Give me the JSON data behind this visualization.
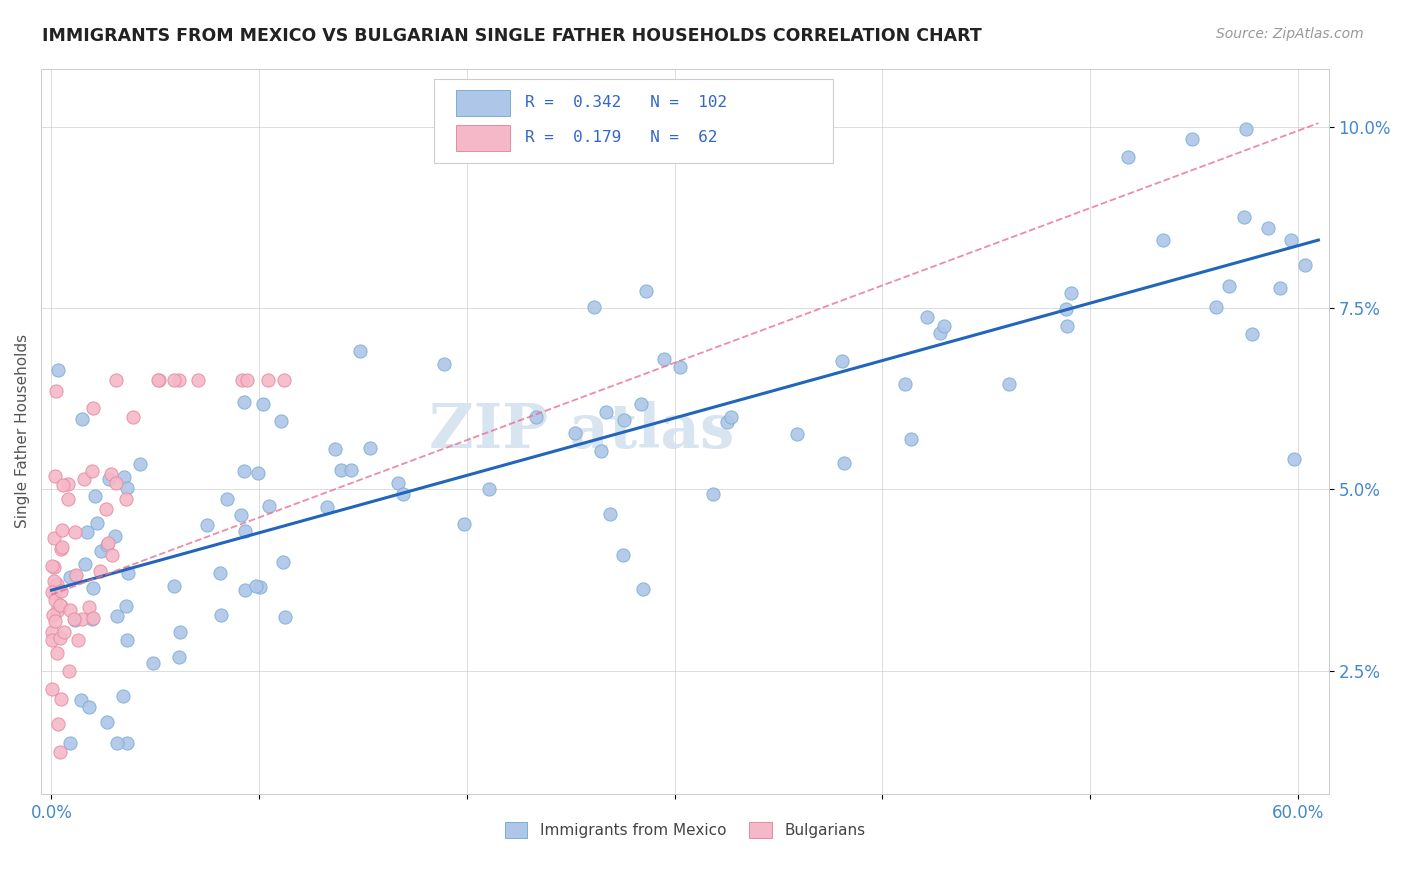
{
  "title": "IMMIGRANTS FROM MEXICO VS BULGARIAN SINGLE FATHER HOUSEHOLDS CORRELATION CHART",
  "source": "Source: ZipAtlas.com",
  "ylabel": "Single Father Households",
  "xlim": [
    -0.005,
    0.615
  ],
  "ylim": [
    0.008,
    0.108
  ],
  "x_ticks": [
    0.0,
    0.1,
    0.2,
    0.3,
    0.4,
    0.5,
    0.6
  ],
  "x_tick_labels": [
    "0.0%",
    "",
    "",
    "",
    "",
    "",
    "60.0%"
  ],
  "y_ticks": [
    0.025,
    0.05,
    0.075,
    0.1
  ],
  "y_tick_labels": [
    "2.5%",
    "5.0%",
    "7.5%",
    "10.0%"
  ],
  "blue_R": 0.342,
  "blue_N": 102,
  "pink_R": 0.179,
  "pink_N": 62,
  "blue_color": "#aec6e8",
  "pink_color": "#f4b8c8",
  "blue_edge": "#7aafd4",
  "pink_edge": "#e88aa0",
  "trend_blue": "#2266bb",
  "trend_pink": "#e87090",
  "legend_blue_color": "#3366cc",
  "legend_N_color": "#cc3333",
  "watermark_color": "#d8e4f0",
  "tick_color": "#4488cc",
  "grid_color": "#cccccc"
}
